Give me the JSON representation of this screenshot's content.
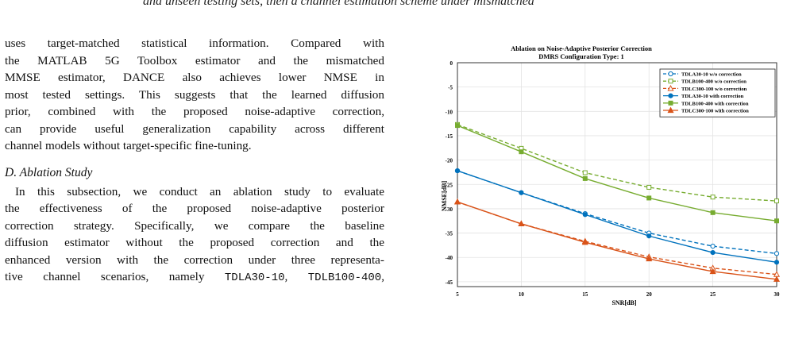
{
  "page": {
    "heading_fragment": "and unseen testing sets, then a channel estimation scheme under mismatched",
    "left": {
      "paragraph1_lines": [
        "uses target-matched statistical information. Compared with",
        "the MATLAB 5G Toolbox estimator and the mismatched",
        "MMSE estimator, DANCE also achieves lower NMSE in",
        "most tested settings. This suggests that the learned diffusion",
        "prior, combined with the proposed noise-adaptive correction,",
        "can provide useful generalization capability across different",
        "channel models without target-specific fine-tuning."
      ],
      "section_heading": "D. Ablation Study",
      "paragraph2_lines": [
        "In this subsection, we conduct an ablation study to evaluate",
        "the effectiveness of the proposed noise-adaptive posterior",
        "correction strategy. Specifically, we compare the baseline",
        "diffusion estimator without the proposed correction and the",
        "enhanced version with the correction under three representa-"
      ],
      "last_line": {
        "prefix": "tive channel scenarios, namely ",
        "code1": "TDLA30-10",
        "sep": ", ",
        "code2": "TDLB100-400",
        "suffix": ","
      }
    }
  },
  "chart_data": {
    "type": "line",
    "title": "Ablation on Noise-Adaptive Posterior Correction",
    "subtitle": "DMRS Configuration Type: 1",
    "xlabel": "SNR[dB]",
    "ylabel": "NMSE[dB]",
    "x": [
      5,
      10,
      15,
      20,
      25,
      30
    ],
    "xlim": [
      5,
      30
    ],
    "ylim": [
      -46,
      0
    ],
    "xticks": [
      "5",
      "10",
      "15",
      "20",
      "25",
      "30"
    ],
    "yticks": [
      "0",
      "-5",
      "-10",
      "-15",
      "-20",
      "-25",
      "-30",
      "-35",
      "-40",
      "-45"
    ],
    "grid": true,
    "legend_position": "top-right",
    "series": [
      {
        "name": "TDLA30-10 w/o correction",
        "color": "#0072BD",
        "dashed": true,
        "marker": "circle-open",
        "values": [
          -22.2,
          -26.7,
          -31.0,
          -35.0,
          -37.7,
          -39.2
        ]
      },
      {
        "name": "TDLB100-400 w/o correction",
        "color": "#77AC30",
        "dashed": true,
        "marker": "square-open",
        "values": [
          -12.7,
          -17.6,
          -22.6,
          -25.6,
          -27.6,
          -28.4
        ]
      },
      {
        "name": "TDLC300-100 w/o correction",
        "color": "#D95319",
        "dashed": true,
        "marker": "triangle-open",
        "values": [
          -28.6,
          -33.1,
          -36.7,
          -39.9,
          -42.2,
          -43.5
        ]
      },
      {
        "name": "TDLA30-10 with correction",
        "color": "#0072BD",
        "dashed": false,
        "marker": "circle-filled",
        "values": [
          -22.2,
          -26.7,
          -31.2,
          -35.6,
          -39.0,
          -41.0
        ]
      },
      {
        "name": "TDLB100-400 with correction",
        "color": "#77AC30",
        "dashed": false,
        "marker": "square-filled",
        "values": [
          -12.9,
          -18.3,
          -23.8,
          -27.8,
          -30.8,
          -32.5
        ]
      },
      {
        "name": "TDLC300-100 with correction",
        "color": "#D95319",
        "dashed": false,
        "marker": "triangle-filled",
        "values": [
          -28.6,
          -33.1,
          -36.9,
          -40.3,
          -42.9,
          -44.5
        ]
      }
    ]
  }
}
